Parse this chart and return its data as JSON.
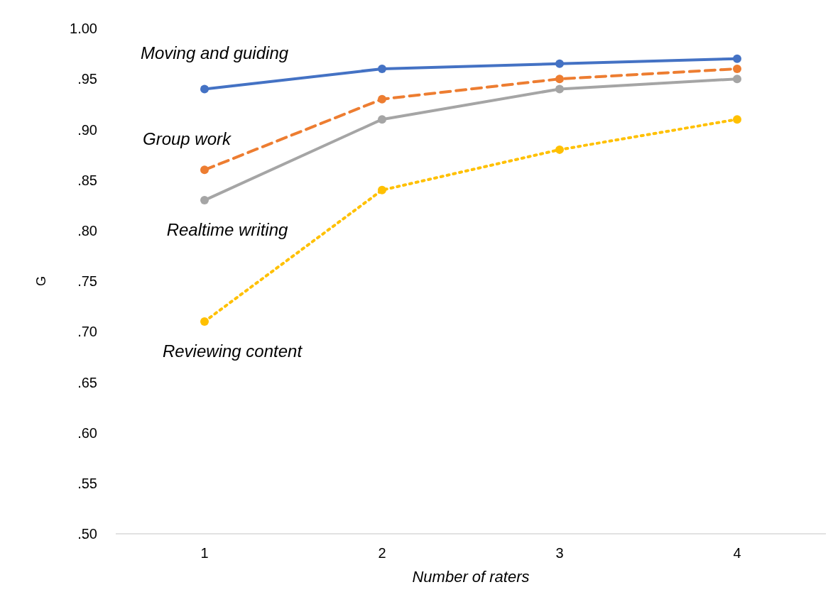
{
  "chart_data": {
    "type": "line",
    "xlabel": "Number of raters",
    "ylabel": "G",
    "categories": [
      "1",
      "2",
      "3",
      "4"
    ],
    "ylim": [
      0.5,
      1.0
    ],
    "yticks": [
      {
        "value": 0.5,
        "label": ".50"
      },
      {
        "value": 0.55,
        "label": ".55"
      },
      {
        "value": 0.6,
        "label": ".60"
      },
      {
        "value": 0.65,
        "label": ".65"
      },
      {
        "value": 0.7,
        "label": ".70"
      },
      {
        "value": 0.75,
        "label": ".75"
      },
      {
        "value": 0.8,
        "label": ".80"
      },
      {
        "value": 0.85,
        "label": ".85"
      },
      {
        "value": 0.9,
        "label": ".90"
      },
      {
        "value": 0.95,
        "label": ".95"
      },
      {
        "value": 1.0,
        "label": "1.00"
      }
    ],
    "marker": "circle",
    "series": [
      {
        "name": "Moving and guiding",
        "color": "#4472c4",
        "line_style": "solid",
        "values": [
          0.94,
          0.96,
          0.965,
          0.97
        ]
      },
      {
        "name": "Group work",
        "color": "#ed7d31",
        "line_style": "dashed",
        "values": [
          0.86,
          0.93,
          0.95,
          0.96
        ]
      },
      {
        "name": "Realtime writing",
        "color": "#a5a5a5",
        "line_style": "solid",
        "values": [
          0.83,
          0.91,
          0.94,
          0.95
        ]
      },
      {
        "name": "Reviewing content",
        "color": "#ffc000",
        "line_style": "dotted",
        "values": [
          0.71,
          0.84,
          0.88,
          0.91
        ]
      }
    ]
  }
}
